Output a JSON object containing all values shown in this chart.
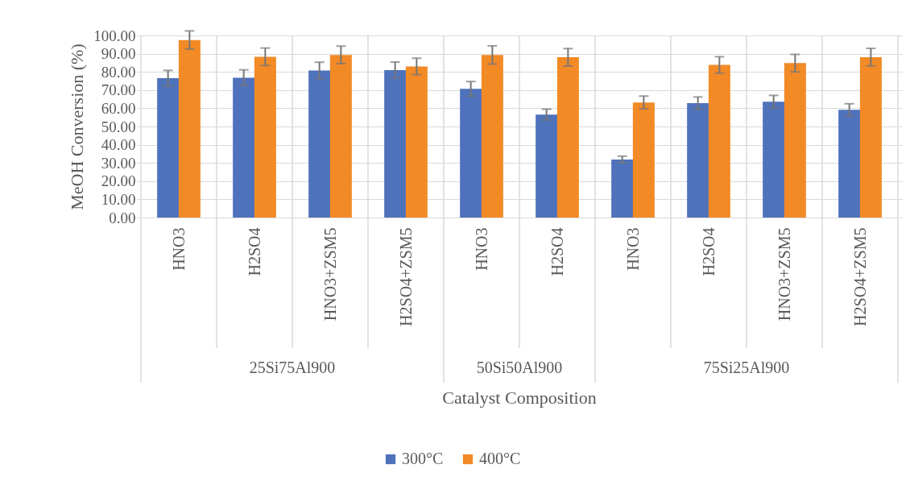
{
  "chart_data": {
    "type": "bar",
    "categories": [
      "HNO3",
      "H2SO4",
      "HNO3+ZSM5",
      "H2SO4+ZSM5",
      "HNO3",
      "H2SO4",
      "HNO3",
      "H2SO4",
      "HNO3+ZSM5",
      "H2SO4+ZSM5"
    ],
    "annotations": [
      "25Si75Al900",
      "50Si50Al900",
      "75Si25Al900"
    ],
    "xlabel": "Catalyst Composition",
    "ylabel": "MeOH Conversion (%)",
    "series": [
      {
        "name": "300°C",
        "color": "#4f72bc",
        "values": [
          76.5,
          76.8,
          80.8,
          81.0,
          70.7,
          56.5,
          31.9,
          62.8,
          63.6,
          59.2
        ],
        "errors": [
          4.3,
          4.3,
          4.5,
          4.4,
          4.0,
          3.0,
          1.8,
          3.4,
          3.5,
          3.3
        ]
      },
      {
        "name": "400°C",
        "color": "#f28a26",
        "values": [
          97.5,
          88.3,
          89.3,
          83.0,
          89.3,
          88.0,
          63.2,
          83.8,
          84.8,
          88.1
        ],
        "errors": [
          5.0,
          4.8,
          4.8,
          4.5,
          5.0,
          4.8,
          3.5,
          4.5,
          4.8,
          4.8
        ]
      }
    ],
    "ylim": [
      0,
      100
    ],
    "yticks": [
      {
        "value": 0,
        "label": "0.00"
      },
      {
        "value": 10,
        "label": "10.00"
      },
      {
        "value": 20,
        "label": "20.00"
      },
      {
        "value": 30,
        "label": "30.00"
      },
      {
        "value": 40,
        "label": "40.00"
      },
      {
        "value": 50,
        "label": "50.00"
      },
      {
        "value": 60,
        "label": "60.00"
      },
      {
        "value": 70,
        "label": "70.00"
      },
      {
        "value": 80,
        "label": "80.00"
      },
      {
        "value": 90,
        "label": "90.00"
      },
      {
        "value": 100,
        "label": "100.00"
      }
    ],
    "grid": true,
    "legend": "bottom"
  }
}
